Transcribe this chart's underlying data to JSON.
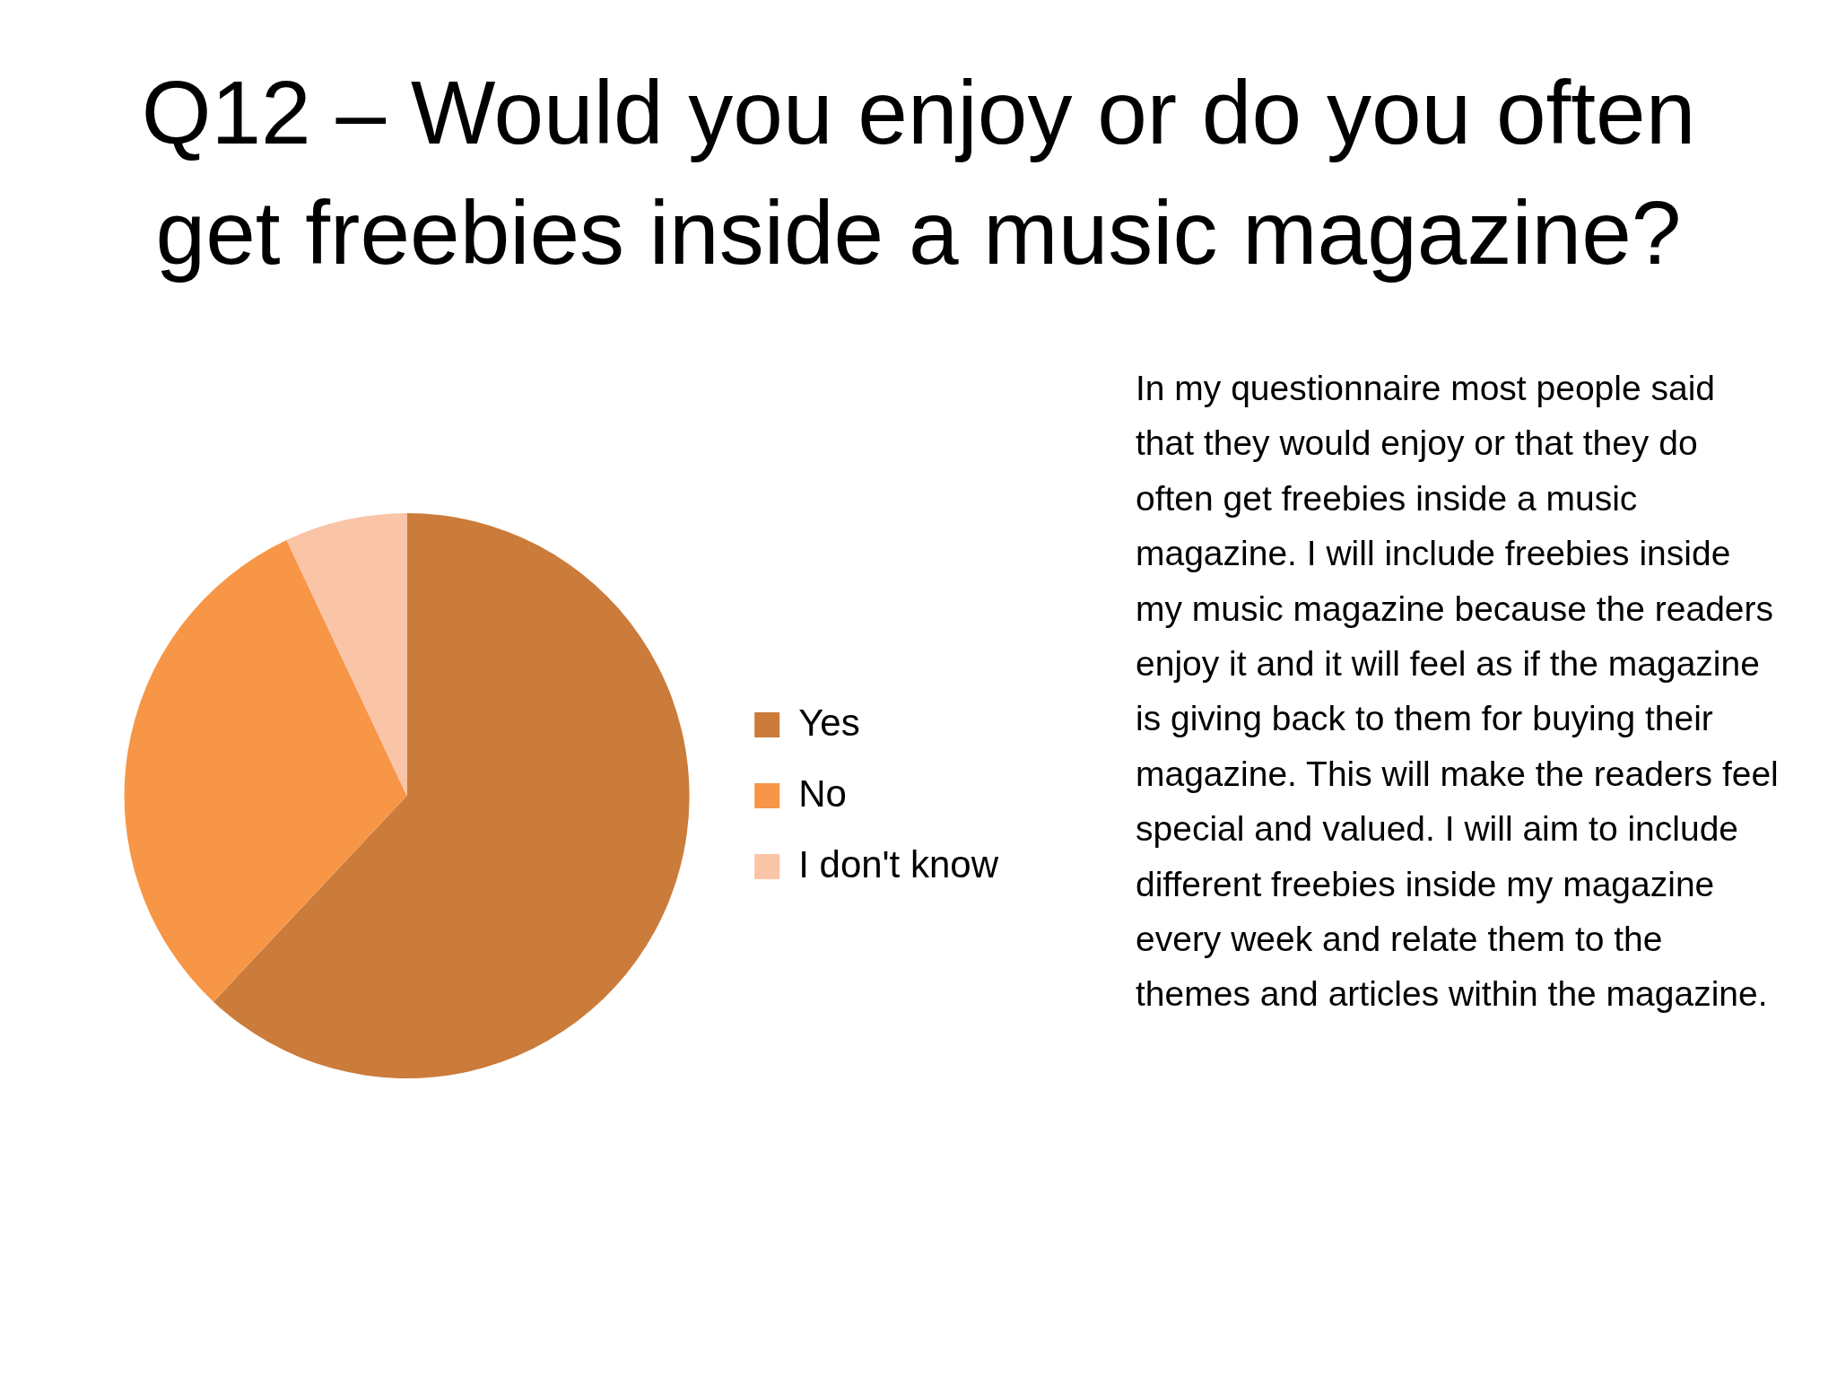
{
  "chart_data": {
    "type": "pie",
    "title": "Q12 – Would you enjoy or do you often get freebies inside a music magazine?",
    "categories": [
      "Yes",
      "No",
      "I don't know"
    ],
    "values": [
      62,
      31,
      7
    ],
    "colors": [
      "#cb7b3a",
      "#f79646",
      "#fac4a6"
    ],
    "legend": "right",
    "annotations": [
      "In my questionnaire most people said that they would enjoy or that they do often get freebies inside a music magazine. I will include freebies inside my music magazine because the readers enjoy it and it will feel as if the magazine is giving back to them for buying their magazine. This will make the readers feel special and valued. I will aim to include different freebies inside my magazine every week and relate them to the themes and articles within the magazine."
    ]
  }
}
